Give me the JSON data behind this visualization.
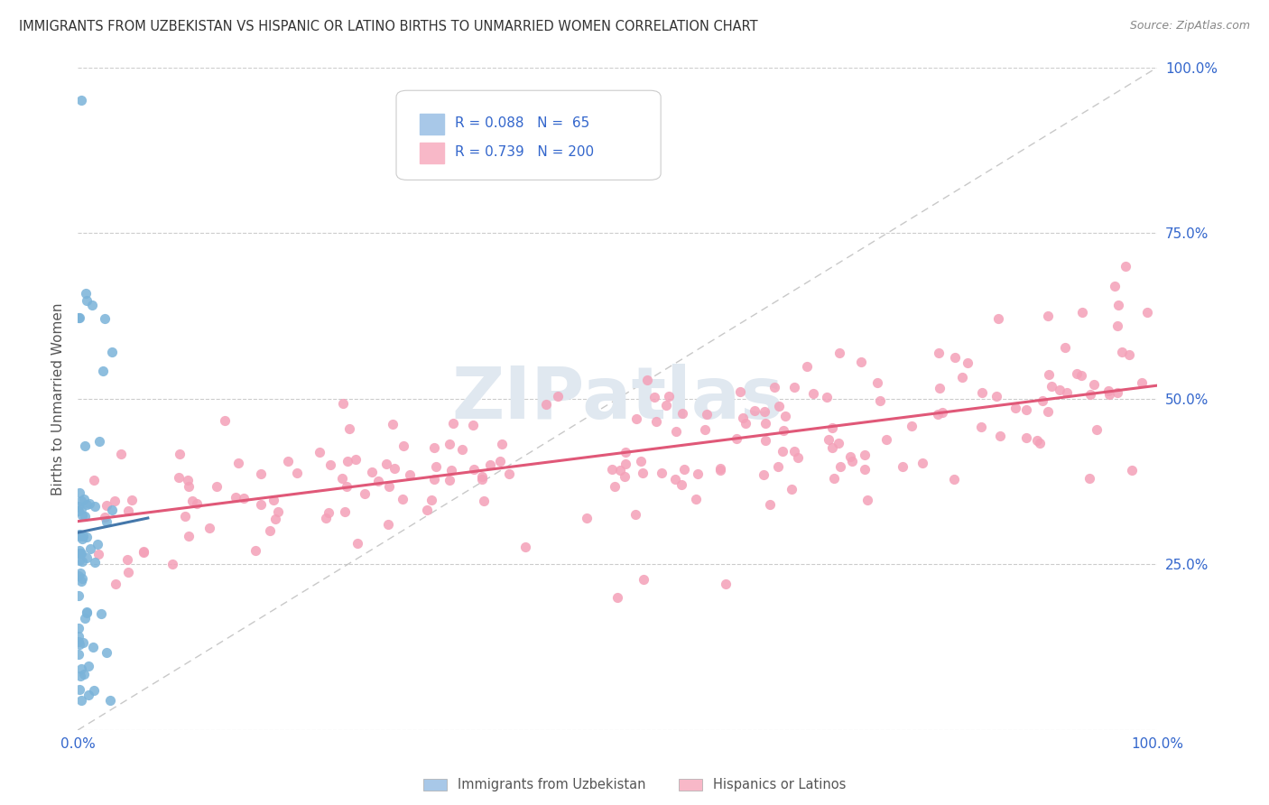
{
  "title": "IMMIGRANTS FROM UZBEKISTAN VS HISPANIC OR LATINO BIRTHS TO UNMARRIED WOMEN CORRELATION CHART",
  "source": "Source: ZipAtlas.com",
  "ylabel": "Births to Unmarried Women",
  "legend_label1": "Immigrants from Uzbekistan",
  "legend_label2": "Hispanics or Latinos",
  "watermark": "ZIPatlas",
  "blue_scatter_color": "#7ab3d9",
  "pink_scatter_color": "#f4a0b8",
  "blue_line_color": "#4477aa",
  "pink_line_color": "#e05878",
  "blue_legend_color": "#a8c8e8",
  "pink_legend_color": "#f8b8c8",
  "grid_color": "#cccccc",
  "bg_color": "#ffffff",
  "title_color": "#333333",
  "source_color": "#888888",
  "legend_text_color": "#3366cc",
  "axis_label_color": "#3366cc",
  "ylabel_color": "#555555",
  "xtick_color": "#3366cc"
}
